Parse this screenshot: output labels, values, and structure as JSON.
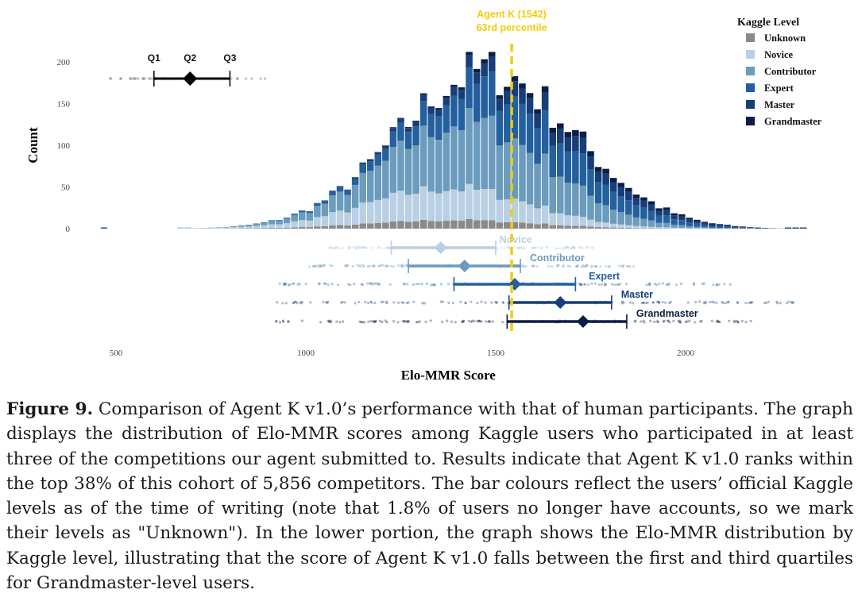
{
  "chart_data": {
    "type": "bar",
    "subtype": "stacked-histogram-with-boxplots",
    "xlabel": "Elo-MMR Score",
    "ylabel": "Count",
    "xlim": [
      350,
      2350
    ],
    "ylim": [
      0,
      200
    ],
    "x_ticks": [
      500,
      1000,
      1500,
      2000
    ],
    "y_ticks": [
      0,
      50,
      100,
      150,
      200
    ],
    "bin_width": 20,
    "legend_title": "Kaggle Level",
    "legend_position": "top-right",
    "levels": [
      {
        "name": "Unknown",
        "color": "#8a8a8a"
      },
      {
        "name": "Novice",
        "color": "#b9cfe3"
      },
      {
        "name": "Contributor",
        "color": "#6b9bbd"
      },
      {
        "name": "Expert",
        "color": "#24609e"
      },
      {
        "name": "Master",
        "color": "#173e78"
      },
      {
        "name": "Grandmaster",
        "color": "#0c1e45"
      }
    ],
    "agent": {
      "score": 1542,
      "label": "Agent K (1542)",
      "sublabel": "63rd percentile",
      "color": "#f2cc0c"
    },
    "overall_boxplot": {
      "q1": 600,
      "q2": 695,
      "q3": 800,
      "min": 600,
      "max": 800,
      "labels": [
        "Q1",
        "Q2",
        "Q3"
      ],
      "count_level": 180
    },
    "level_boxplots": [
      {
        "name": "Novice",
        "q1": 1225,
        "median": 1355,
        "q3": 1500
      },
      {
        "name": "Contributor",
        "q1": 1270,
        "median": 1418,
        "q3": 1565
      },
      {
        "name": "Expert",
        "q1": 1390,
        "median": 1550,
        "q3": 1710
      },
      {
        "name": "Master",
        "q1": 1535,
        "median": 1670,
        "q3": 1805
      },
      {
        "name": "Grandmaster",
        "q1": 1530,
        "median": 1730,
        "q3": 1845
      }
    ]
  },
  "caption": {
    "figure_label": "Figure 9.",
    "text": " Comparison of Agent K v1.0’s performance with that of human participants. The graph displays the distribution of Elo-MMR scores among Kaggle users who participated in at least three of the competitions our agent submitted to. Results indicate that Agent K v1.0 ranks within the top 38% of this cohort of 5,856 competitors. The bar colours reflect the users’ official Kaggle levels as of the time of writing (note that 1.8% of users no longer have accounts, so we mark their levels as \"Unknown\"). In the lower portion, the graph shows the Elo-MMR distribution by Kaggle level, illustrating that the score of Agent K v1.0 falls between the first and third quartiles for Grandmaster-level users."
  }
}
